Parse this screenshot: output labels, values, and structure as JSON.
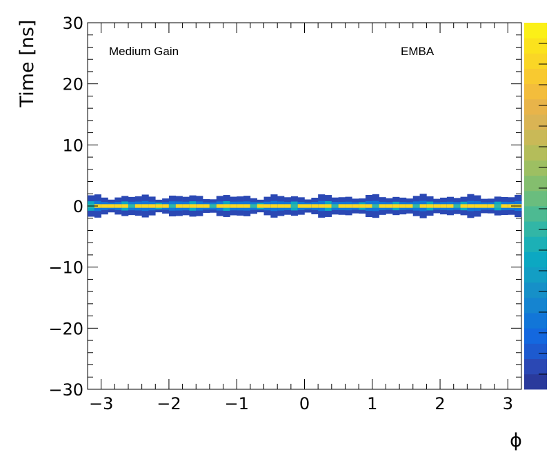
{
  "chart_data": {
    "type": "heatmap",
    "title": "",
    "xlabel": "ϕ",
    "ylabel": "Time [ns]",
    "xlim": [
      -3.2,
      3.2
    ],
    "ylim": [
      -30,
      30
    ],
    "x_ticks": [
      -3,
      -2,
      -1,
      0,
      1,
      2,
      3
    ],
    "y_ticks": [
      -30,
      -20,
      -10,
      0,
      10,
      20,
      30
    ],
    "x_tick_labels": [
      "−3",
      "−2",
      "−1",
      "0",
      "1",
      "2",
      "3"
    ],
    "y_tick_labels": [
      "−30",
      "−20",
      "−10",
      "0",
      "10",
      "20",
      "30"
    ],
    "annotations": [
      "Medium Gain",
      "EMBA"
    ],
    "grid": false,
    "colorbar": true,
    "colormap": [
      "#2a3a9c",
      "#2b48b4",
      "#1d5acf",
      "#1468df",
      "#1276d8",
      "#1584d0",
      "#1690c8",
      "#139ec4",
      "#0ca8c2",
      "#1cb0b6",
      "#32b6a6",
      "#4dba92",
      "#6abd7e",
      "#84be6e",
      "#9dbf62",
      "#b4bd5a",
      "#c9b957",
      "#dab454",
      "#e8b44a",
      "#f3bd3c",
      "#f8c930",
      "#fad626",
      "#fbe21d",
      "#fbf018"
    ],
    "phi_bins": 64,
    "band_description_values": {
      "core_time_ns": 0.0,
      "core_halfwidth_ns": 0.3,
      "inner_halfwidth_ns": 0.7,
      "outer_halfwidth_ns": 1.5
    }
  }
}
